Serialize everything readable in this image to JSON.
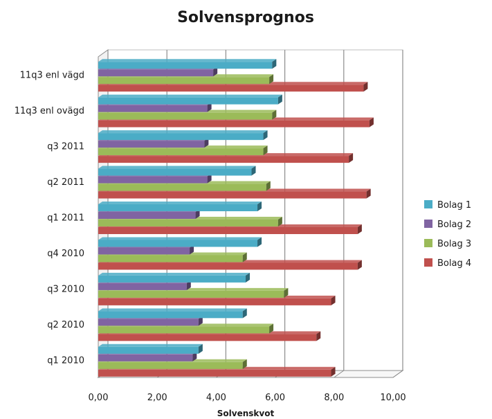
{
  "chart_data": {
    "type": "bar",
    "orientation": "horizontal",
    "title": "Solvensprognos",
    "xlabel": "Solvenskvot",
    "ylabel": "",
    "xlim": [
      0,
      10
    ],
    "x_ticks": [
      "0,00",
      "2,00",
      "4,00",
      "6,00",
      "8,00",
      "10,00"
    ],
    "grid": true,
    "legend_position": "right",
    "categories": [
      "q1 2010",
      "q2 2010",
      "q3 2010",
      "q4 2010",
      "q1 2011",
      "q2 2011",
      "q3 2011",
      "11q3 enl ovägd",
      "11q3 enl vägd"
    ],
    "series": [
      {
        "name": "Bolag 1",
        "color": "#4bacc6",
        "values": [
          3.4,
          4.9,
          5.0,
          5.4,
          5.4,
          5.2,
          5.6,
          6.1,
          5.9
        ]
      },
      {
        "name": "Bolag 2",
        "color": "#8064a2",
        "values": [
          3.2,
          3.4,
          3.0,
          3.1,
          3.3,
          3.7,
          3.6,
          3.7,
          3.9
        ]
      },
      {
        "name": "Bolag 3",
        "color": "#9bbb59",
        "values": [
          4.9,
          5.8,
          6.3,
          4.9,
          6.1,
          5.7,
          5.6,
          5.9,
          5.8
        ]
      },
      {
        "name": "Bolag 4",
        "color": "#c0504d",
        "values": [
          7.9,
          7.4,
          7.9,
          8.8,
          8.8,
          9.1,
          8.5,
          9.2,
          9.0
        ]
      }
    ]
  }
}
